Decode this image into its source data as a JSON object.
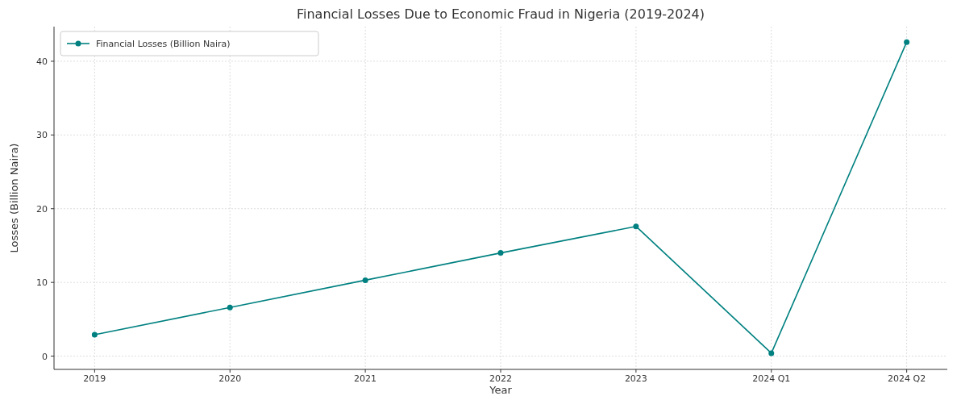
{
  "chart_data": {
    "type": "line",
    "title": "Financial Losses Due to Economic Fraud in Nigeria (2019-2024)",
    "xlabel": "Year",
    "ylabel": "Losses (Billion Naira)",
    "categories": [
      "2019",
      "2020",
      "2021",
      "2022",
      "2023",
      "2024 Q1",
      "2024 Q2"
    ],
    "series": [
      {
        "name": "Financial Losses (Billion Naira)",
        "color": "#008080",
        "values": [
          2.9,
          6.6,
          10.3,
          14.0,
          17.6,
          0.4,
          42.6
        ]
      }
    ],
    "ylim": [
      -1.8,
      44.7
    ],
    "yticks": [
      0,
      10,
      20,
      30,
      40
    ],
    "grid": true,
    "legend": "top left",
    "marker": "circle",
    "line_style": "solid"
  }
}
